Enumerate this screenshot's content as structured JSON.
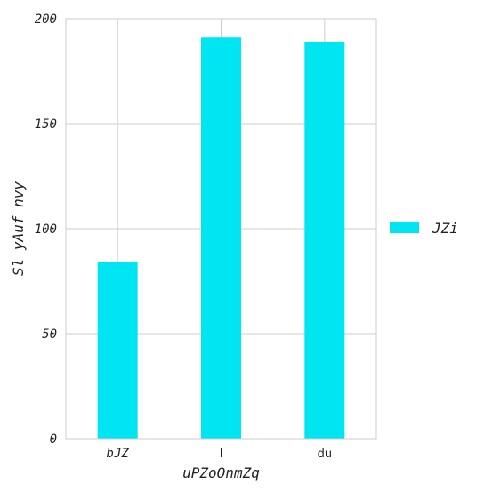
{
  "chart_data": {
    "type": "bar",
    "categories": [
      "bJZ",
      "l",
      "du"
    ],
    "series": [
      {
        "name": "JZi",
        "values": [
          84,
          191,
          189
        ]
      }
    ],
    "title": "",
    "xlabel": "uPZoOnmZq",
    "ylabel": "Sl yAuf nvy",
    "ylim": [
      0,
      200
    ],
    "yticks": [
      0,
      50,
      100,
      150,
      200
    ],
    "yticks_labels": [
      "0",
      "50",
      "100",
      "150",
      "200"
    ],
    "grid": true,
    "legend_position": "right",
    "colors": {
      "bar": "#00e5f2",
      "grid": "#cccccc",
      "frame": "#cccccc"
    }
  }
}
